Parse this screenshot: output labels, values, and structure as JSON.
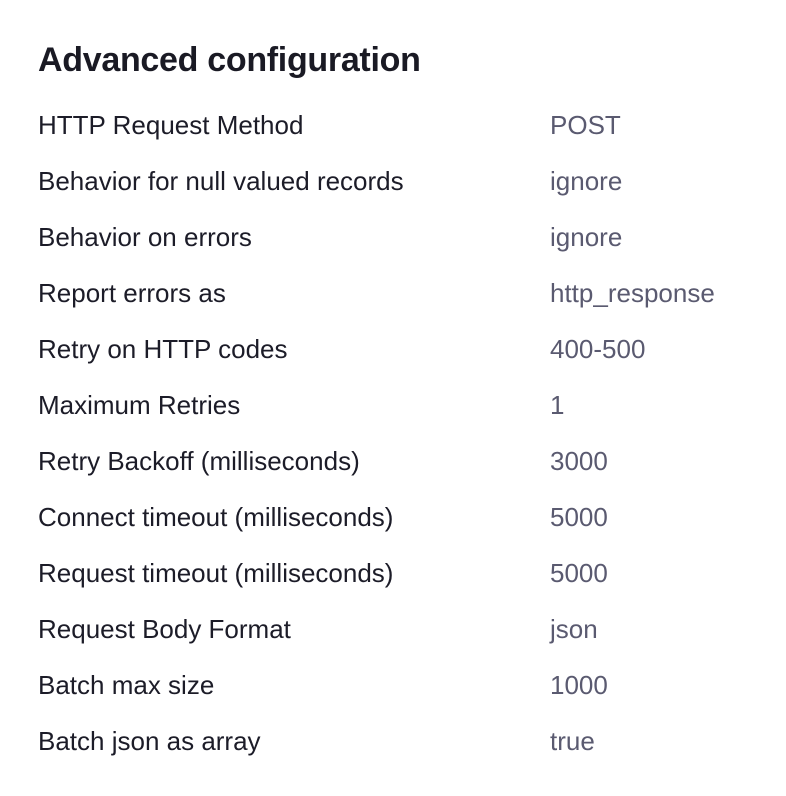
{
  "title": "Advanced configuration",
  "rows": [
    {
      "label": "HTTP Request Method",
      "value": "POST"
    },
    {
      "label": "Behavior for null valued records",
      "value": "ignore"
    },
    {
      "label": "Behavior on errors",
      "value": "ignore"
    },
    {
      "label": "Report errors as",
      "value": "http_response"
    },
    {
      "label": "Retry on HTTP codes",
      "value": "400-500"
    },
    {
      "label": "Maximum Retries",
      "value": "1"
    },
    {
      "label": "Retry Backoff (milliseconds)",
      "value": "3000"
    },
    {
      "label": "Connect timeout (milliseconds)",
      "value": "5000"
    },
    {
      "label": "Request timeout (milliseconds)",
      "value": "5000"
    },
    {
      "label": "Request Body Format",
      "value": "json"
    },
    {
      "label": "Batch max size",
      "value": "1000"
    },
    {
      "label": "Batch json as array",
      "value": "true"
    }
  ]
}
